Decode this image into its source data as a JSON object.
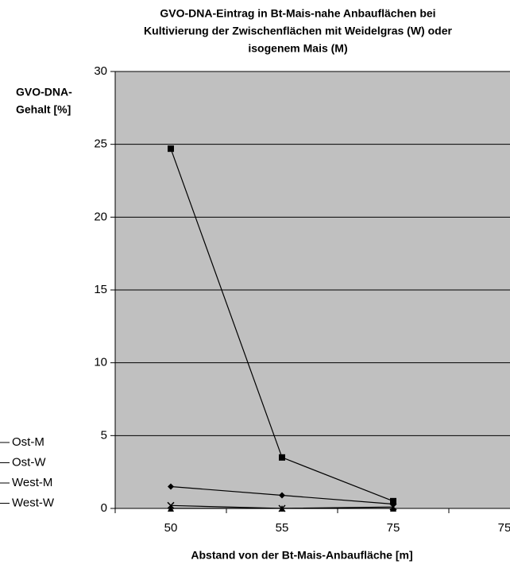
{
  "chart_data": {
    "type": "line",
    "title": [
      "GVO-DNA-Eintrag in Bt-Mais-nahe Anbauflächen bei",
      "Kultivierung der Zwischenflächen mit Weidelgras (W) oder",
      "isogenem Mais (M)"
    ],
    "ylabel": [
      "GVO-DNA-",
      "Gehalt [%]"
    ],
    "xlabel": "Abstand von der Bt-Mais-Anbaufläche [m]",
    "categories": [
      "50",
      "55",
      "75",
      "75"
    ],
    "series": [
      {
        "name": "Ost-M",
        "color": "#000000",
        "marker": "diamond",
        "values": [
          1.5,
          0.9,
          0.3,
          null
        ]
      },
      {
        "name": "Ost-W",
        "color": "#000000",
        "marker": "square",
        "values": [
          24.7,
          3.5,
          0.5,
          null
        ]
      },
      {
        "name": "West-M",
        "color": "#000000",
        "marker": "triangle",
        "values": [
          0,
          0,
          0,
          null
        ]
      },
      {
        "name": "West-W",
        "color": "#000000",
        "marker": "x",
        "values": [
          0.2,
          0,
          0.1,
          null
        ]
      }
    ],
    "ylim": [
      0,
      30
    ],
    "yticks": [
      0,
      5,
      10,
      15,
      20,
      25,
      30
    ],
    "grid": true,
    "legend": "left"
  }
}
